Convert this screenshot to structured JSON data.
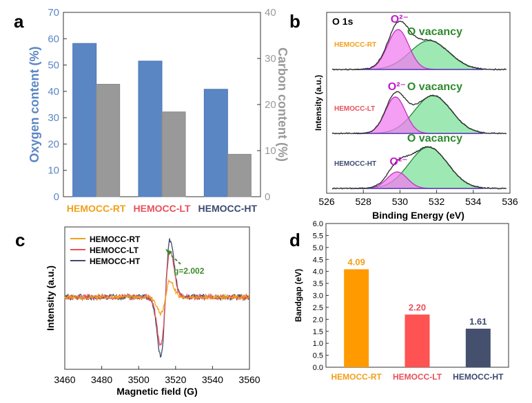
{
  "panel_letters": {
    "a": "a",
    "b": "b",
    "c": "c",
    "d": "d"
  },
  "colors": {
    "oxygen": "#5b86c4",
    "carbon": "#999999",
    "rt": "#f2a018",
    "lt": "#e8505b",
    "ht": "#3c4a6e",
    "o2": "#f07ef0",
    "ovac": "#7ee19a",
    "ovac_text": "#2c8a2c",
    "o2_text": "#c219c8",
    "bar_rt": "#ff9a00",
    "bar_lt": "#ff5252",
    "bar_ht": "#44506e",
    "g_arrow": "#3d8a2a"
  },
  "chart_data": [
    {
      "id": "a",
      "type": "bar",
      "categories": [
        "HEMOCC-RT",
        "HEMOCC-LT",
        "HEMOCC-HT"
      ],
      "series": [
        {
          "name": "",
          "axis": "left",
          "values": [
            58.2,
            51.5,
            40.8
          ]
        },
        {
          "name": "",
          "axis": "right",
          "values": [
            24.4,
            18.4,
            9.2
          ]
        }
      ],
      "ylabel": "Oxygen content (%)",
      "ylabel_right": "Carbon content (%)",
      "ylim": [
        0,
        70
      ],
      "ylim_right": [
        0,
        40
      ],
      "yticks": [
        "0",
        "10",
        "20",
        "30",
        "40",
        "50",
        "60",
        "70"
      ],
      "yticks_right": [
        "0",
        "10",
        "20",
        "30",
        "40"
      ]
    },
    {
      "id": "b",
      "type": "line",
      "title": "O 1s",
      "xlabel": "Binding Energy (eV)",
      "ylabel": "Intensity (a.u.)",
      "xlim": [
        526,
        536
      ],
      "xticks": [
        "526",
        "528",
        "530",
        "532",
        "534",
        "536"
      ],
      "peak_labels": {
        "o2": "O²⁻",
        "ovac": "O vacancy"
      },
      "series": [
        {
          "name": "HEMOCC-RT",
          "o2": {
            "center": 529.9,
            "sigma": 0.58,
            "amp": 58
          },
          "ovac": {
            "center": 531.6,
            "sigma": 1.05,
            "amp": 42
          }
        },
        {
          "name": "HEMOCC-LT",
          "o2": {
            "center": 529.75,
            "sigma": 0.55,
            "amp": 53
          },
          "ovac": {
            "center": 531.8,
            "sigma": 1.0,
            "amp": 55
          }
        },
        {
          "name": "HEMOCC-HT",
          "o2": {
            "center": 529.85,
            "sigma": 0.55,
            "amp": 24
          },
          "ovac": {
            "center": 531.55,
            "sigma": 1.05,
            "amp": 60
          }
        }
      ]
    },
    {
      "id": "c",
      "type": "line",
      "xlabel": "Magnetic field (G)",
      "ylabel": "Intensity (a.u.)",
      "xlim": [
        3460,
        3560
      ],
      "xticks": [
        "3460",
        "3480",
        "3500",
        "3520",
        "3540",
        "3560"
      ],
      "annotation": "g=2.002",
      "series": [
        {
          "name": "HEMOCC-RT",
          "amplitude": 0.28
        },
        {
          "name": "HEMOCC-LT",
          "amplitude": 0.82
        },
        {
          "name": "HEMOCC-HT",
          "amplitude": 1.0
        }
      ]
    },
    {
      "id": "d",
      "type": "bar",
      "categories": [
        "HEMOCC-RT",
        "HEMOCC-LT",
        "HEMOCC-HT"
      ],
      "values": [
        4.09,
        2.2,
        1.61
      ],
      "value_labels": [
        "4.09",
        "2.20",
        "1.61"
      ],
      "ylabel": "Bandgap (eV)",
      "ylim": [
        0,
        5.6
      ],
      "yticks": [
        "0.0",
        "0.5",
        "1.0",
        "1.5",
        "2.0",
        "2.5",
        "3.0",
        "3.5",
        "4.0",
        "4.5",
        "5.0",
        "5.5",
        "6.0"
      ]
    }
  ]
}
